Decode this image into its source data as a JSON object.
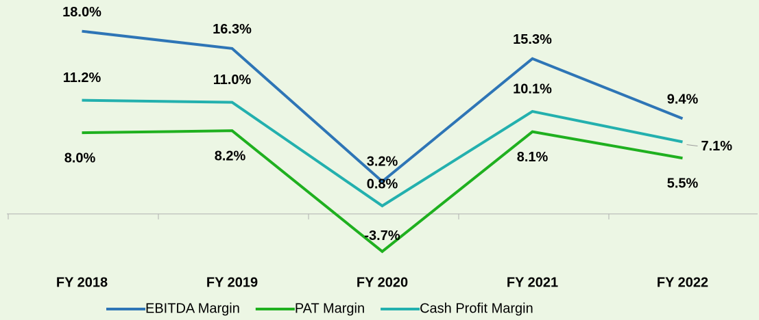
{
  "chart_data": {
    "type": "line",
    "categories": [
      "FY 2018",
      "FY 2019",
      "FY 2020",
      "FY 2021",
      "FY 2022"
    ],
    "series": [
      {
        "name": "EBITDA Margin",
        "color": "#2e75b6",
        "values": [
          18.0,
          16.3,
          3.2,
          15.3,
          9.4
        ],
        "value_labels": [
          "18.0%",
          "16.3%",
          "3.2%",
          "15.3%",
          "9.4%"
        ]
      },
      {
        "name": "PAT Margin",
        "color": "#1fb01f",
        "values": [
          8.0,
          8.2,
          -3.7,
          8.1,
          5.5
        ],
        "value_labels": [
          "8.0%",
          "8.2%",
          "-3.7%",
          "8.1%",
          "5.5%"
        ]
      },
      {
        "name": "Cash Profit Margin",
        "color": "#23b0ae",
        "values": [
          11.2,
          11.0,
          0.8,
          10.1,
          7.1
        ],
        "value_labels": [
          "11.2%",
          "11.0%",
          "0.8%",
          "10.1%",
          "7.1%"
        ]
      }
    ],
    "ylim": [
      -6,
      20
    ]
  }
}
